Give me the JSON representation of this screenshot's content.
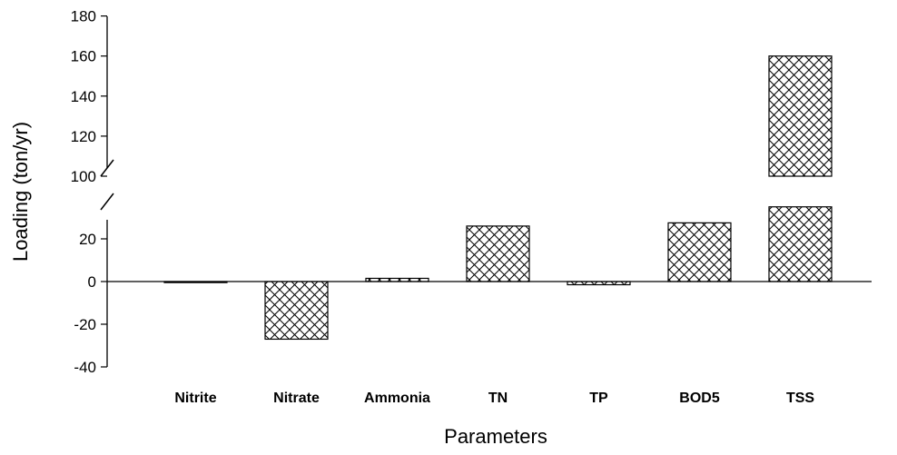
{
  "chart_data": {
    "type": "bar",
    "title": "",
    "xlabel": "Parameters",
    "ylabel": "Loading (ton/yr)",
    "categories": [
      "Nitrite",
      "Nitrate",
      "Ammonia",
      "TN",
      "TP",
      "BOD5",
      "TSS"
    ],
    "values": [
      -0.5,
      -27,
      1.5,
      26,
      -1.5,
      27.5,
      160
    ],
    "ylim": [
      -40,
      180
    ],
    "axis_break": [
      35,
      100
    ],
    "yticks": [
      -40,
      -20,
      0,
      20,
      100,
      120,
      140,
      160,
      180
    ],
    "grid": false,
    "pattern": "crosshatch",
    "colors": {
      "bar_fill": "#ffffff",
      "hatch": "#000000",
      "axis": "#000000"
    }
  }
}
